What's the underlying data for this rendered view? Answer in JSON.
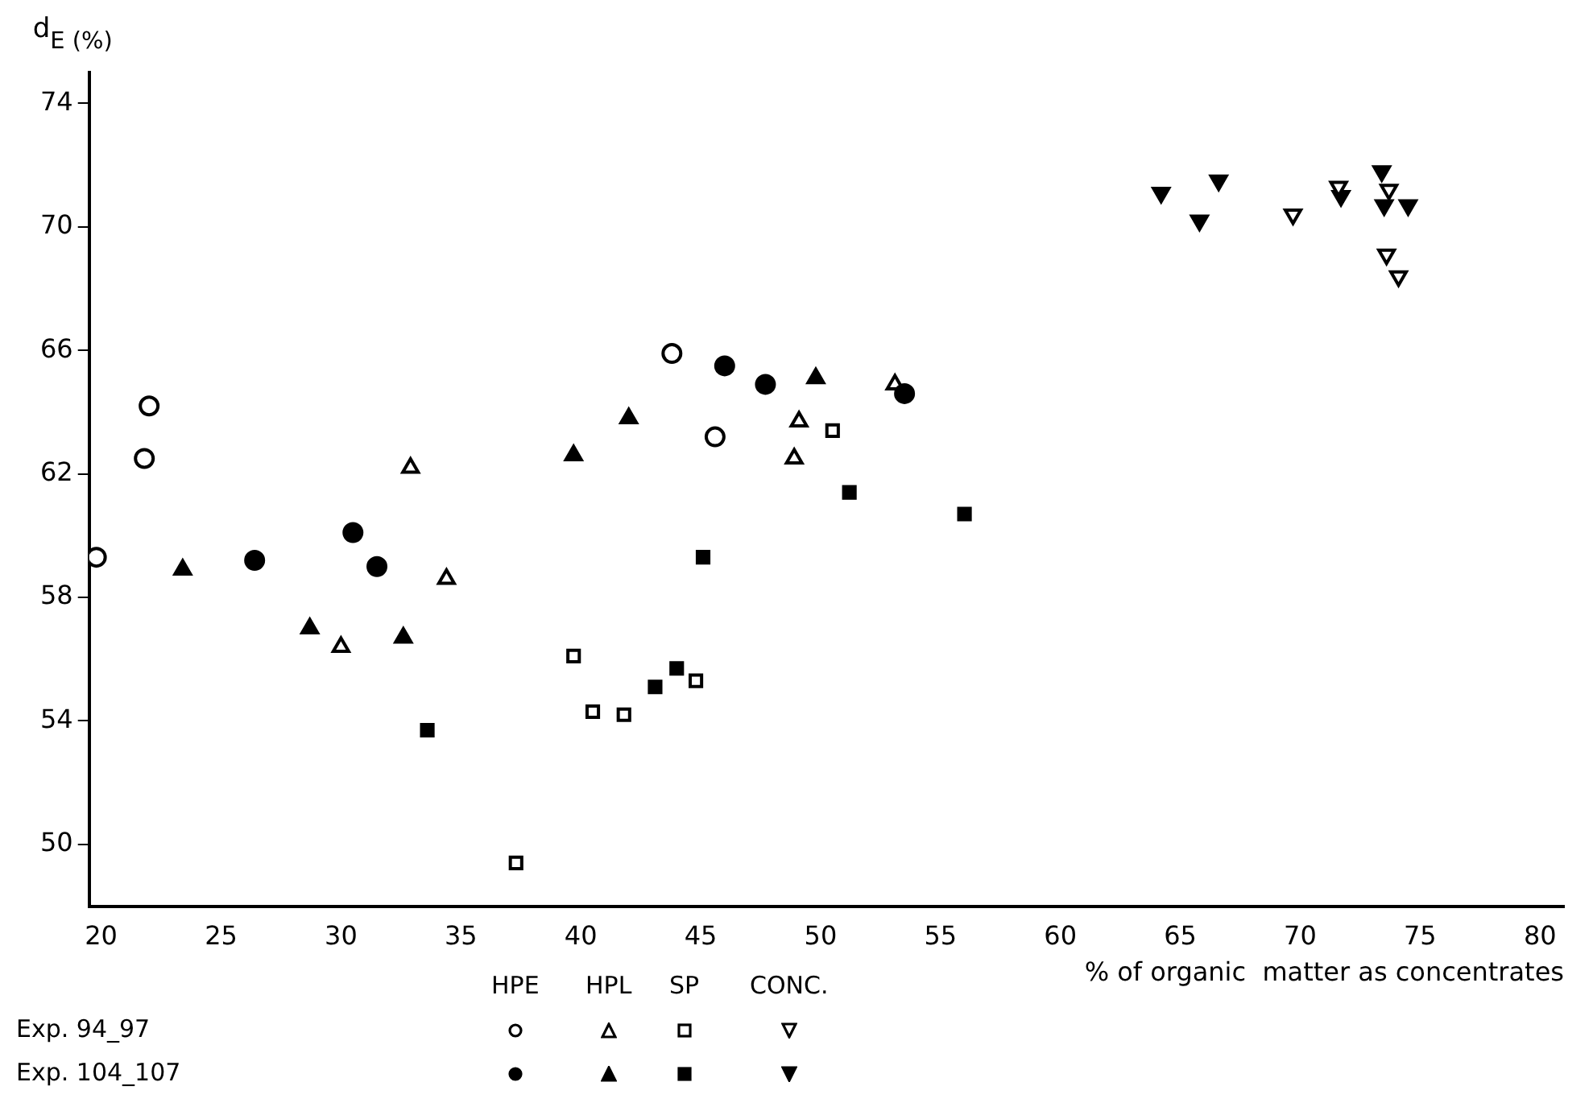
{
  "chart_data": {
    "type": "scatter",
    "ylabel": "d$_{E (%)}$",
    "xlabel": "% of organic  matter as concentrates",
    "xlim": [
      19.5,
      81
    ],
    "xticks": [
      20,
      25,
      30,
      35,
      40,
      45,
      50,
      55,
      60,
      65,
      70,
      75,
      80
    ],
    "ylim": [
      48,
      75
    ],
    "yticks": [
      50,
      54,
      58,
      62,
      66,
      70,
      74
    ],
    "grid": false,
    "annotations": [
      "HPE",
      "HPL",
      "SP",
      "CONC.",
      "Exp. 94_97",
      "Exp. 104_107"
    ],
    "series": [
      {
        "marker": "circle",
        "color": "#ffffff",
        "x": [
          19.8,
          22.0,
          21.8,
          43.8,
          45.6
        ],
        "values": [
          59.3,
          64.2,
          62.5,
          65.9,
          63.2
        ]
      },
      {
        "marker": "circle",
        "color": "#000000",
        "x": [
          26.4,
          30.5,
          31.5,
          46.0,
          47.7,
          53.5
        ],
        "values": [
          59.2,
          60.1,
          59.0,
          65.5,
          64.9,
          64.6
        ]
      },
      {
        "marker": "triangle",
        "color": "#ffffff",
        "x": [
          32.9,
          30.0,
          34.4,
          49.1,
          48.9,
          53.1
        ],
        "values": [
          62.2,
          56.4,
          58.6,
          63.7,
          62.5,
          64.9
        ]
      },
      {
        "marker": "triangle",
        "color": "#000000",
        "x": [
          23.4,
          28.7,
          32.6,
          39.7,
          42.0,
          49.8
        ],
        "values": [
          58.9,
          57.0,
          56.7,
          62.6,
          63.8,
          65.1
        ]
      },
      {
        "marker": "square",
        "color": "#ffffff",
        "x": [
          37.3,
          39.7,
          40.5,
          41.8,
          44.8,
          50.5
        ],
        "values": [
          49.4,
          56.1,
          54.3,
          54.2,
          55.3,
          63.4
        ]
      },
      {
        "marker": "square",
        "color": "#000000",
        "x": [
          33.6,
          43.1,
          44.0,
          45.1,
          51.2,
          56.0
        ],
        "values": [
          53.7,
          55.1,
          55.7,
          59.3,
          61.4,
          60.7
        ]
      },
      {
        "marker": "triangle_down",
        "color": "#ffffff",
        "x": [
          69.7,
          71.6,
          73.7,
          73.6,
          74.1
        ],
        "values": [
          70.4,
          71.3,
          71.2,
          69.1,
          68.4
        ]
      },
      {
        "marker": "triangle_down",
        "color": "#000000",
        "x": [
          64.2,
          66.6,
          65.8,
          71.7,
          73.4,
          73.5,
          74.5
        ],
        "values": [
          71.1,
          71.5,
          70.2,
          71.0,
          71.8,
          70.7,
          70.7
        ]
      }
    ]
  }
}
